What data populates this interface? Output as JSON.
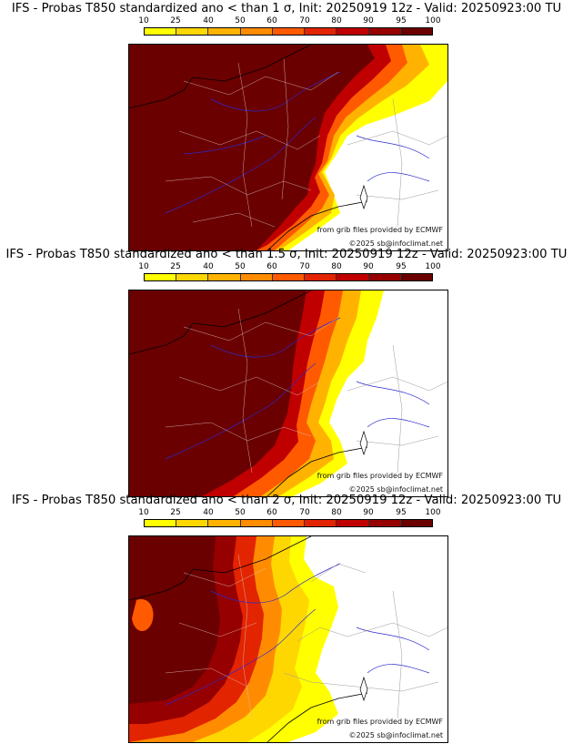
{
  "scale": {
    "ticks": [
      "10",
      "25",
      "40",
      "50",
      "60",
      "70",
      "80",
      "90",
      "95",
      "100"
    ],
    "colors": [
      "#ffff00",
      "#ffd700",
      "#ffb300",
      "#ff8c00",
      "#ff5a00",
      "#e32400",
      "#c00000",
      "#960000",
      "#6b0000"
    ]
  },
  "panels": [
    {
      "title": "IFS - Probas T850  standardized ano < than 1 σ, Init: 20250919 12z - Valid: 20250923:00 TU",
      "credit_line1": "from grib files provided by ECMWF",
      "credit_line2": "©2025 sb@infoclimat.net"
    },
    {
      "title": "IFS - Probas T850  standardized ano < than 1.5 σ, Init: 20250919 12z - Valid: 20250923:00 TU",
      "credit_line1": "from grib files provided by ECMWF",
      "credit_line2": "©2025 sb@infoclimat.net"
    },
    {
      "title": "IFS - Probas T850  standardized ano < than 2 σ, Init: 20250919 12z - Valid: 20250923:00 TU",
      "credit_line1": "from grib files provided by ECMWF",
      "credit_line2": "©2025 sb@infoclimat.net"
    }
  ]
}
